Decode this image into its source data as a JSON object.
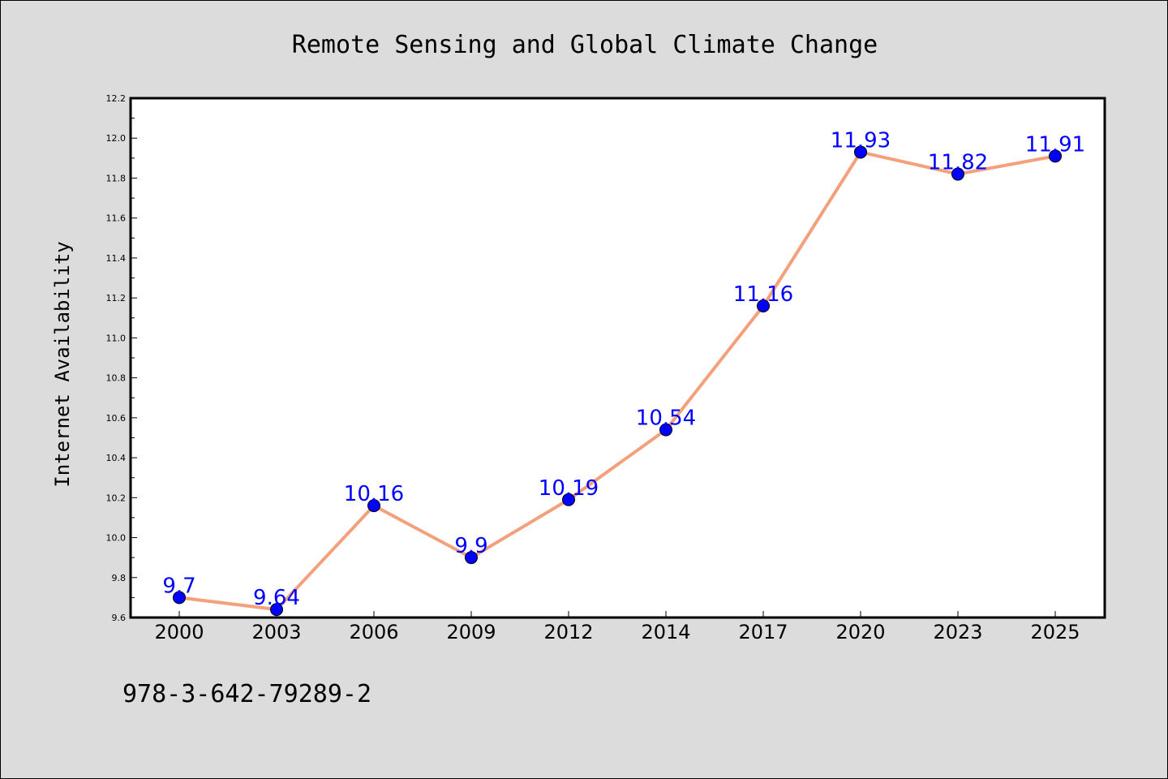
{
  "chart_data": {
    "type": "line",
    "title": "Remote Sensing and Global Climate Change",
    "xlabel": "",
    "ylabel": "Internet Availability",
    "categories": [
      "2000",
      "2003",
      "2006",
      "2009",
      "2012",
      "2014",
      "2017",
      "2020",
      "2023",
      "2025"
    ],
    "series": [
      {
        "values": [
          9.7,
          9.64,
          10.16,
          9.9,
          10.19,
          10.54,
          11.16,
          11.93,
          11.82,
          11.91
        ],
        "line_color": "#f4a07c",
        "marker_color": "#0000ff"
      }
    ],
    "data_labels": [
      "9.7",
      "9.64",
      "10.16",
      "9.9",
      "10.19",
      "10.54",
      "11.16",
      "11.93",
      "11.82",
      "11.91"
    ],
    "ylim": [
      9.6,
      12.2
    ],
    "yticks": [
      "9.6",
      "9.8",
      "10.0",
      "10.2",
      "10.4",
      "10.6",
      "10.8",
      "11.0",
      "11.2",
      "11.4",
      "11.6",
      "11.8",
      "12.0",
      "12.2"
    ],
    "grid": false,
    "legend": "none",
    "label_color": "#0000ff"
  },
  "footer": {
    "isbn": "978-3-642-79289-2"
  }
}
